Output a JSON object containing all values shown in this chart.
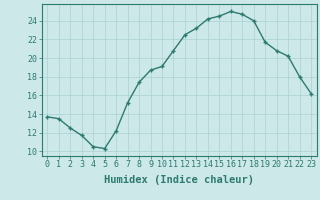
{
  "x": [
    0,
    1,
    2,
    3,
    4,
    5,
    6,
    7,
    8,
    9,
    10,
    11,
    12,
    13,
    14,
    15,
    16,
    17,
    18,
    19,
    20,
    21,
    22,
    23
  ],
  "y": [
    13.7,
    13.5,
    12.5,
    11.7,
    10.5,
    10.3,
    12.2,
    15.2,
    17.4,
    18.7,
    19.1,
    20.8,
    22.5,
    23.2,
    24.2,
    24.5,
    25.0,
    24.7,
    24.0,
    21.7,
    20.8,
    20.2,
    18.0,
    16.2
  ],
  "line_color": "#2d7a6e",
  "marker": "+",
  "marker_color": "#2d7a6e",
  "bg_color": "#cce8e8",
  "grid_color": "#aad0d0",
  "xlabel": "Humidex (Indice chaleur)",
  "xlim": [
    -0.5,
    23.5
  ],
  "ylim": [
    9.5,
    25.8
  ],
  "yticks": [
    10,
    12,
    14,
    16,
    18,
    20,
    22,
    24
  ],
  "xticks": [
    0,
    1,
    2,
    3,
    4,
    5,
    6,
    7,
    8,
    9,
    10,
    11,
    12,
    13,
    14,
    15,
    16,
    17,
    18,
    19,
    20,
    21,
    22,
    23
  ],
  "tick_color": "#2d7a6e",
  "spine_color": "#2d7a6e",
  "font_color": "#2d7a6e",
  "xlabel_fontsize": 7.5,
  "tick_fontsize": 6,
  "linewidth": 1.0,
  "markersize": 3.5
}
